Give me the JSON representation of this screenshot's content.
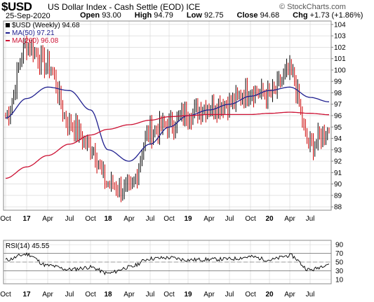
{
  "header": {
    "symbol": "$USD",
    "name": "US Dollar Index - Cash Settle (EOD)",
    "exchange": "ICE",
    "watermark": "© StockCharts.com",
    "date": "25-Sep-2020",
    "open_label": "Open",
    "open": "93.00",
    "high_label": "High",
    "high": "94.79",
    "low_label": "Low",
    "low": "92.75",
    "close_label": "Close",
    "close": "94.68",
    "chg_label": "Chg",
    "chg": "+1.73 (+1.86%)"
  },
  "legend": {
    "price": "$USD (Weekly) 94.68",
    "ma50": "MA(50) 97.21",
    "ma200": "MA(200) 96.08",
    "rsi": "RSI(14) 45.55"
  },
  "colors": {
    "up": "#000000",
    "down": "#cc0000",
    "ma50": "#1f1f8f",
    "ma200": "#cc1133",
    "grid": "#d9d9d9",
    "rsi_line": "#000000"
  },
  "x_labels": [
    {
      "label": "Oct",
      "bold": false
    },
    {
      "label": "17",
      "bold": true
    },
    {
      "label": "Apr",
      "bold": false
    },
    {
      "label": "Jul",
      "bold": false
    },
    {
      "label": "Oct",
      "bold": false
    },
    {
      "label": "18",
      "bold": true
    },
    {
      "label": "Apr",
      "bold": false
    },
    {
      "label": "Jul",
      "bold": false
    },
    {
      "label": "Oct",
      "bold": false
    },
    {
      "label": "19",
      "bold": true
    },
    {
      "label": "Apr",
      "bold": false
    },
    {
      "label": "Jul",
      "bold": false
    },
    {
      "label": "Oct",
      "bold": false
    },
    {
      "label": "20",
      "bold": true
    },
    {
      "label": "Apr",
      "bold": false
    },
    {
      "label": "Jul",
      "bold": false
    }
  ],
  "chart_data": [
    {
      "type": "line",
      "title": "$USD US Dollar Index - Cash Settle (EOD) ICE",
      "interval": "Weekly",
      "x": [
        "Oct 2016",
        "Jan 2017",
        "Apr 2017",
        "Jul 2017",
        "Oct 2017",
        "Jan 2018",
        "Apr 2018",
        "Jul 2018",
        "Oct 2018",
        "Jan 2019",
        "Apr 2019",
        "Jul 2019",
        "Oct 2019",
        "Jan 2020",
        "Apr 2020",
        "Jul 2020",
        "Sep 2020"
      ],
      "y_ticks": [
        88,
        89,
        90,
        91,
        92,
        93,
        94,
        95,
        96,
        97,
        98,
        99,
        100,
        101,
        102,
        103,
        104
      ],
      "ylim": [
        87.7,
        104.3
      ],
      "series": [
        {
          "name": "$USD (Weekly)",
          "values": [
            96.0,
            102.2,
            100.4,
            95.3,
            93.3,
            90.0,
            89.4,
            94.6,
            95.2,
            96.2,
            96.8,
            97.1,
            98.2,
            97.8,
            99.8,
            93.4,
            94.68
          ]
        },
        {
          "name": "MA(50)",
          "values": [
            95.8,
            97.5,
            98.5,
            98.2,
            96.5,
            93.0,
            92.0,
            93.5,
            95.0,
            96.0,
            96.5,
            97.0,
            97.7,
            98.2,
            98.5,
            97.6,
            97.21
          ]
        },
        {
          "name": "MA(200)",
          "values": [
            90.5,
            91.5,
            92.5,
            93.5,
            94.3,
            94.8,
            95.2,
            95.6,
            95.9,
            96.0,
            96.1,
            96.1,
            96.1,
            96.2,
            96.3,
            96.2,
            96.08
          ]
        }
      ]
    },
    {
      "type": "line",
      "title": "RSI(14) 45.55",
      "x": [
        "Oct 2016",
        "Jan 2017",
        "Apr 2017",
        "Jul 2017",
        "Oct 2017",
        "Jan 2018",
        "Apr 2018",
        "Jul 2018",
        "Oct 2018",
        "Jan 2019",
        "Apr 2019",
        "Jul 2019",
        "Oct 2019",
        "Jan 2020",
        "Apr 2020",
        "Jul 2020",
        "Sep 2020"
      ],
      "y_ticks": [
        10,
        30,
        50,
        70,
        90
      ],
      "ylim": [
        0,
        100
      ],
      "series": [
        {
          "name": "RSI(14)",
          "values": [
            55,
            68,
            42,
            33,
            38,
            24,
            38,
            58,
            60,
            55,
            56,
            57,
            62,
            55,
            65,
            32,
            45.55
          ]
        }
      ]
    }
  ]
}
